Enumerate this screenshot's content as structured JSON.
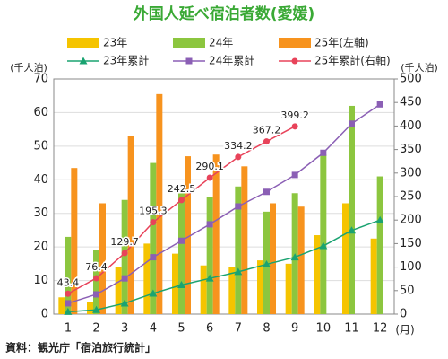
{
  "chart_data": {
    "type": "bar",
    "title": "外国人延べ宿泊者数(愛媛)",
    "y_label": "(千人泊)",
    "y2_label": "(千人泊)",
    "x_unit": "(月)",
    "source": "資料：観光庁「宿泊旅行統計」",
    "categories": [
      "1",
      "2",
      "3",
      "4",
      "5",
      "6",
      "7",
      "8",
      "9",
      "10",
      "11",
      "12"
    ],
    "ylim": [
      0,
      70
    ],
    "yticks": [
      0,
      10,
      20,
      30,
      40,
      50,
      60,
      70
    ],
    "y2lim": [
      0,
      500
    ],
    "y2ticks": [
      0,
      50,
      100,
      150,
      200,
      250,
      300,
      350,
      400,
      450,
      500
    ],
    "grid": true,
    "series": [
      {
        "name": "23年",
        "type": "bar",
        "axis": "y",
        "color": "#f5c400",
        "values": [
          5,
          3.5,
          14,
          21,
          18,
          14.5,
          14,
          16,
          15,
          23.5,
          33,
          22.5
        ]
      },
      {
        "name": "24年",
        "type": "bar",
        "axis": "y",
        "color": "#8cc63f",
        "values": [
          23,
          19,
          34,
          45,
          36,
          35,
          38,
          30.5,
          36,
          47.5,
          62,
          41
        ]
      },
      {
        "name": "25年(左軸)",
        "type": "bar",
        "axis": "y",
        "color": "#f7931e",
        "values": [
          43.5,
          33,
          53,
          65.5,
          47,
          47.5,
          44,
          33,
          32,
          null,
          null,
          null
        ]
      },
      {
        "name": "23年累計",
        "type": "line",
        "axis": "y2",
        "color": "#1aa371",
        "marker": "triangle",
        "values": [
          5,
          9,
          23,
          44,
          62,
          76,
          90,
          106,
          121,
          145,
          178,
          200
        ]
      },
      {
        "name": "24年累計",
        "type": "line",
        "axis": "y2",
        "color": "#8b5fb5",
        "marker": "square",
        "values": [
          23,
          42,
          76,
          121,
          156,
          191,
          229,
          260,
          296,
          343,
          405,
          446
        ]
      },
      {
        "name": "25年累計(右軸)",
        "type": "line",
        "axis": "y2",
        "color": "#e8435a",
        "marker": "circle",
        "data_labels": true,
        "values": [
          43.4,
          76.4,
          129.7,
          195.3,
          242.5,
          290.1,
          334.2,
          367.2,
          399.2,
          null,
          null,
          null
        ]
      }
    ]
  }
}
